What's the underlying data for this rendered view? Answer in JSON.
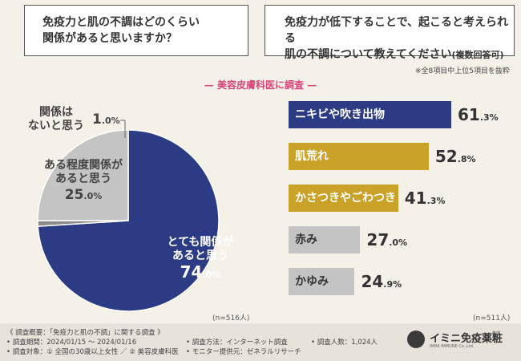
{
  "q1": {
    "line1": "免疫力と肌の不調はどのくらい",
    "line2": "関係があると思いますか？"
  },
  "q2": {
    "line1": "免疫力が低下することで、起こると考えられる",
    "line2": "肌の不調について教えてください",
    "line2_note": "(複数回答可)"
  },
  "note": "※全8項目中上位5項目を抜粋",
  "survey_title": "美容皮膚科医に調査",
  "pie": {
    "n_label": "(n=516人)",
    "slices": [
      {
        "label_lines": [
          "とても関係が",
          "あると思う"
        ],
        "pct_int": "74",
        "pct_dec": ".0%"
      },
      {
        "label_lines": [
          "関係は",
          "ないと思う"
        ],
        "pct_int": "1",
        "pct_dec": ".0%"
      },
      {
        "label_lines": [
          "ある程度関係が",
          "あると思う"
        ],
        "pct_int": "25",
        "pct_dec": ".0%"
      }
    ]
  },
  "bars": {
    "n_label": "(n=511人)",
    "items": [
      {
        "label": "ニキビや吹き出物",
        "pct_int": "61",
        "pct_dec": ".3%"
      },
      {
        "label": "肌荒れ",
        "pct_int": "52",
        "pct_dec": ".8%"
      },
      {
        "label": "かさつきやごわつき",
        "pct_int": "41",
        "pct_dec": ".3%"
      },
      {
        "label": "赤み",
        "pct_int": "27",
        "pct_dec": ".0%"
      },
      {
        "label": "かゆみ",
        "pct_int": "24",
        "pct_dec": ".9%"
      }
    ]
  },
  "chart_data": [
    {
      "type": "pie",
      "categories": [
        "とても関係があると思う",
        "関係はないと思う",
        "ある程度関係があると思う"
      ],
      "values": [
        74.0,
        1.0,
        25.0
      ],
      "colors": [
        "#2b3b84",
        "#8a8a8a",
        "#c4c4c4"
      ]
    },
    {
      "type": "bar",
      "categories": [
        "ニキビや吹き出物",
        "肌荒れ",
        "かさつきやごわつき",
        "赤み",
        "かゆみ"
      ],
      "values": [
        61.3,
        52.8,
        41.3,
        27.0,
        24.9
      ],
      "colors": [
        "#2b3b84",
        "#c9a227",
        "#c9a227",
        "#c4c4c4",
        "#c4c4c4"
      ],
      "xlim": [
        0,
        61.3
      ]
    }
  ],
  "footer": {
    "title": "《 調査概要：「免疫力と肌の不調」に関する調査 》",
    "period": "• 調査期間：2024/01/15 ～ 2024/01/16",
    "target": "• 調査対象：① 全国の30歳以上女性 ／ ② 美容皮膚科医",
    "method": "• 調査方法：インターネット調査",
    "monitor": "• モニター提供元：ゼネラルリサーチ",
    "count": "• 調査人数：1,024人"
  },
  "logo": {
    "name": "イミニ免疫薬粧",
    "sub": "IMINI IMMUNE Co.,Ltd.",
    "corp": "株式会社"
  }
}
